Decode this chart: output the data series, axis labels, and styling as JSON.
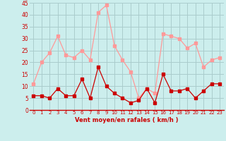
{
  "xlabel": "Vent moyen/en rafales ( km/h )",
  "bg_color": "#cceeed",
  "grid_color": "#aacccc",
  "x_values": [
    0,
    1,
    2,
    3,
    4,
    5,
    6,
    7,
    8,
    9,
    10,
    11,
    12,
    13,
    14,
    15,
    16,
    17,
    18,
    19,
    20,
    21,
    22,
    23
  ],
  "mean_values": [
    6,
    6,
    5,
    9,
    6,
    6,
    13,
    5,
    18,
    10,
    7,
    5,
    3,
    4,
    9,
    3,
    15,
    8,
    8,
    9,
    5,
    8,
    11,
    11
  ],
  "gust_values": [
    11,
    20,
    24,
    31,
    23,
    22,
    25,
    21,
    41,
    44,
    27,
    21,
    16,
    5,
    9,
    7,
    32,
    31,
    30,
    26,
    28,
    18,
    21,
    22
  ],
  "mean_color": "#cc0000",
  "gust_color": "#ff9999",
  "ylim": [
    0,
    45
  ],
  "yticks": [
    0,
    5,
    10,
    15,
    20,
    25,
    30,
    35,
    40,
    45
  ],
  "marker_size": 2.5,
  "linewidth": 0.9
}
